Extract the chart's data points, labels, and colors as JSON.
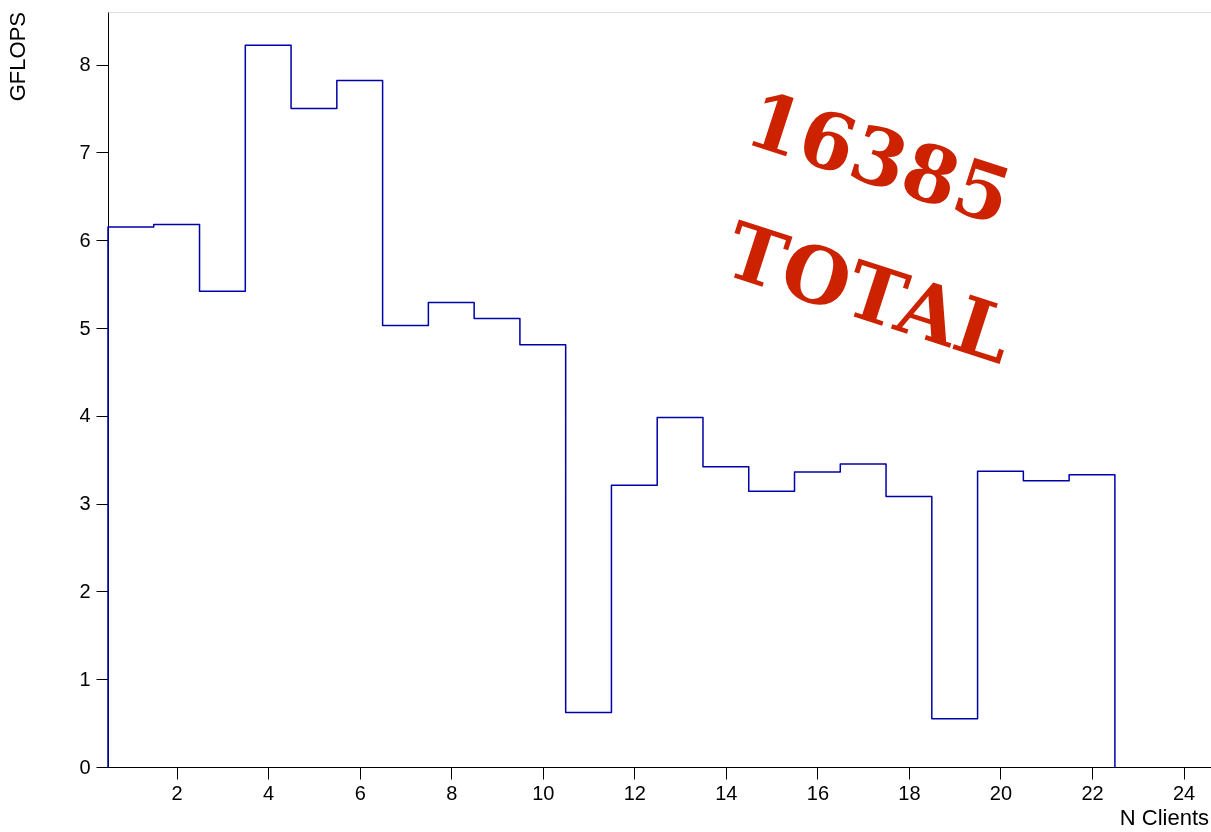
{
  "chart_data": {
    "type": "histogram",
    "bins": [
      0.5,
      1.5,
      2.5,
      3.5,
      4.5,
      5.5,
      6.5,
      7.5,
      8.5,
      9.5,
      10.5,
      11.5,
      12.5,
      13.5,
      14.5,
      15.5,
      16.5,
      17.5,
      18.5,
      19.5,
      20.5,
      21.5,
      22.5
    ],
    "values": [
      6.15,
      6.18,
      5.42,
      8.22,
      7.5,
      7.82,
      5.03,
      5.29,
      5.11,
      4.81,
      0.62,
      3.21,
      3.98,
      3.42,
      3.14,
      3.36,
      3.45,
      3.08,
      0.55,
      3.37,
      3.26,
      3.33
    ],
    "color": "#0000a8",
    "xlabel": "N Clients",
    "ylabel": "GFLOPS",
    "xlim": [
      0.5,
      24.6
    ],
    "xticks": [
      2,
      4,
      6,
      8,
      10,
      12,
      14,
      16,
      18,
      20,
      22,
      24
    ],
    "ylim": [
      0,
      8.6
    ],
    "yticks": [
      0,
      1,
      2,
      3,
      4,
      5,
      6,
      7,
      8
    ],
    "grid": false,
    "annotations": [
      "16385",
      "TOTAL"
    ]
  }
}
